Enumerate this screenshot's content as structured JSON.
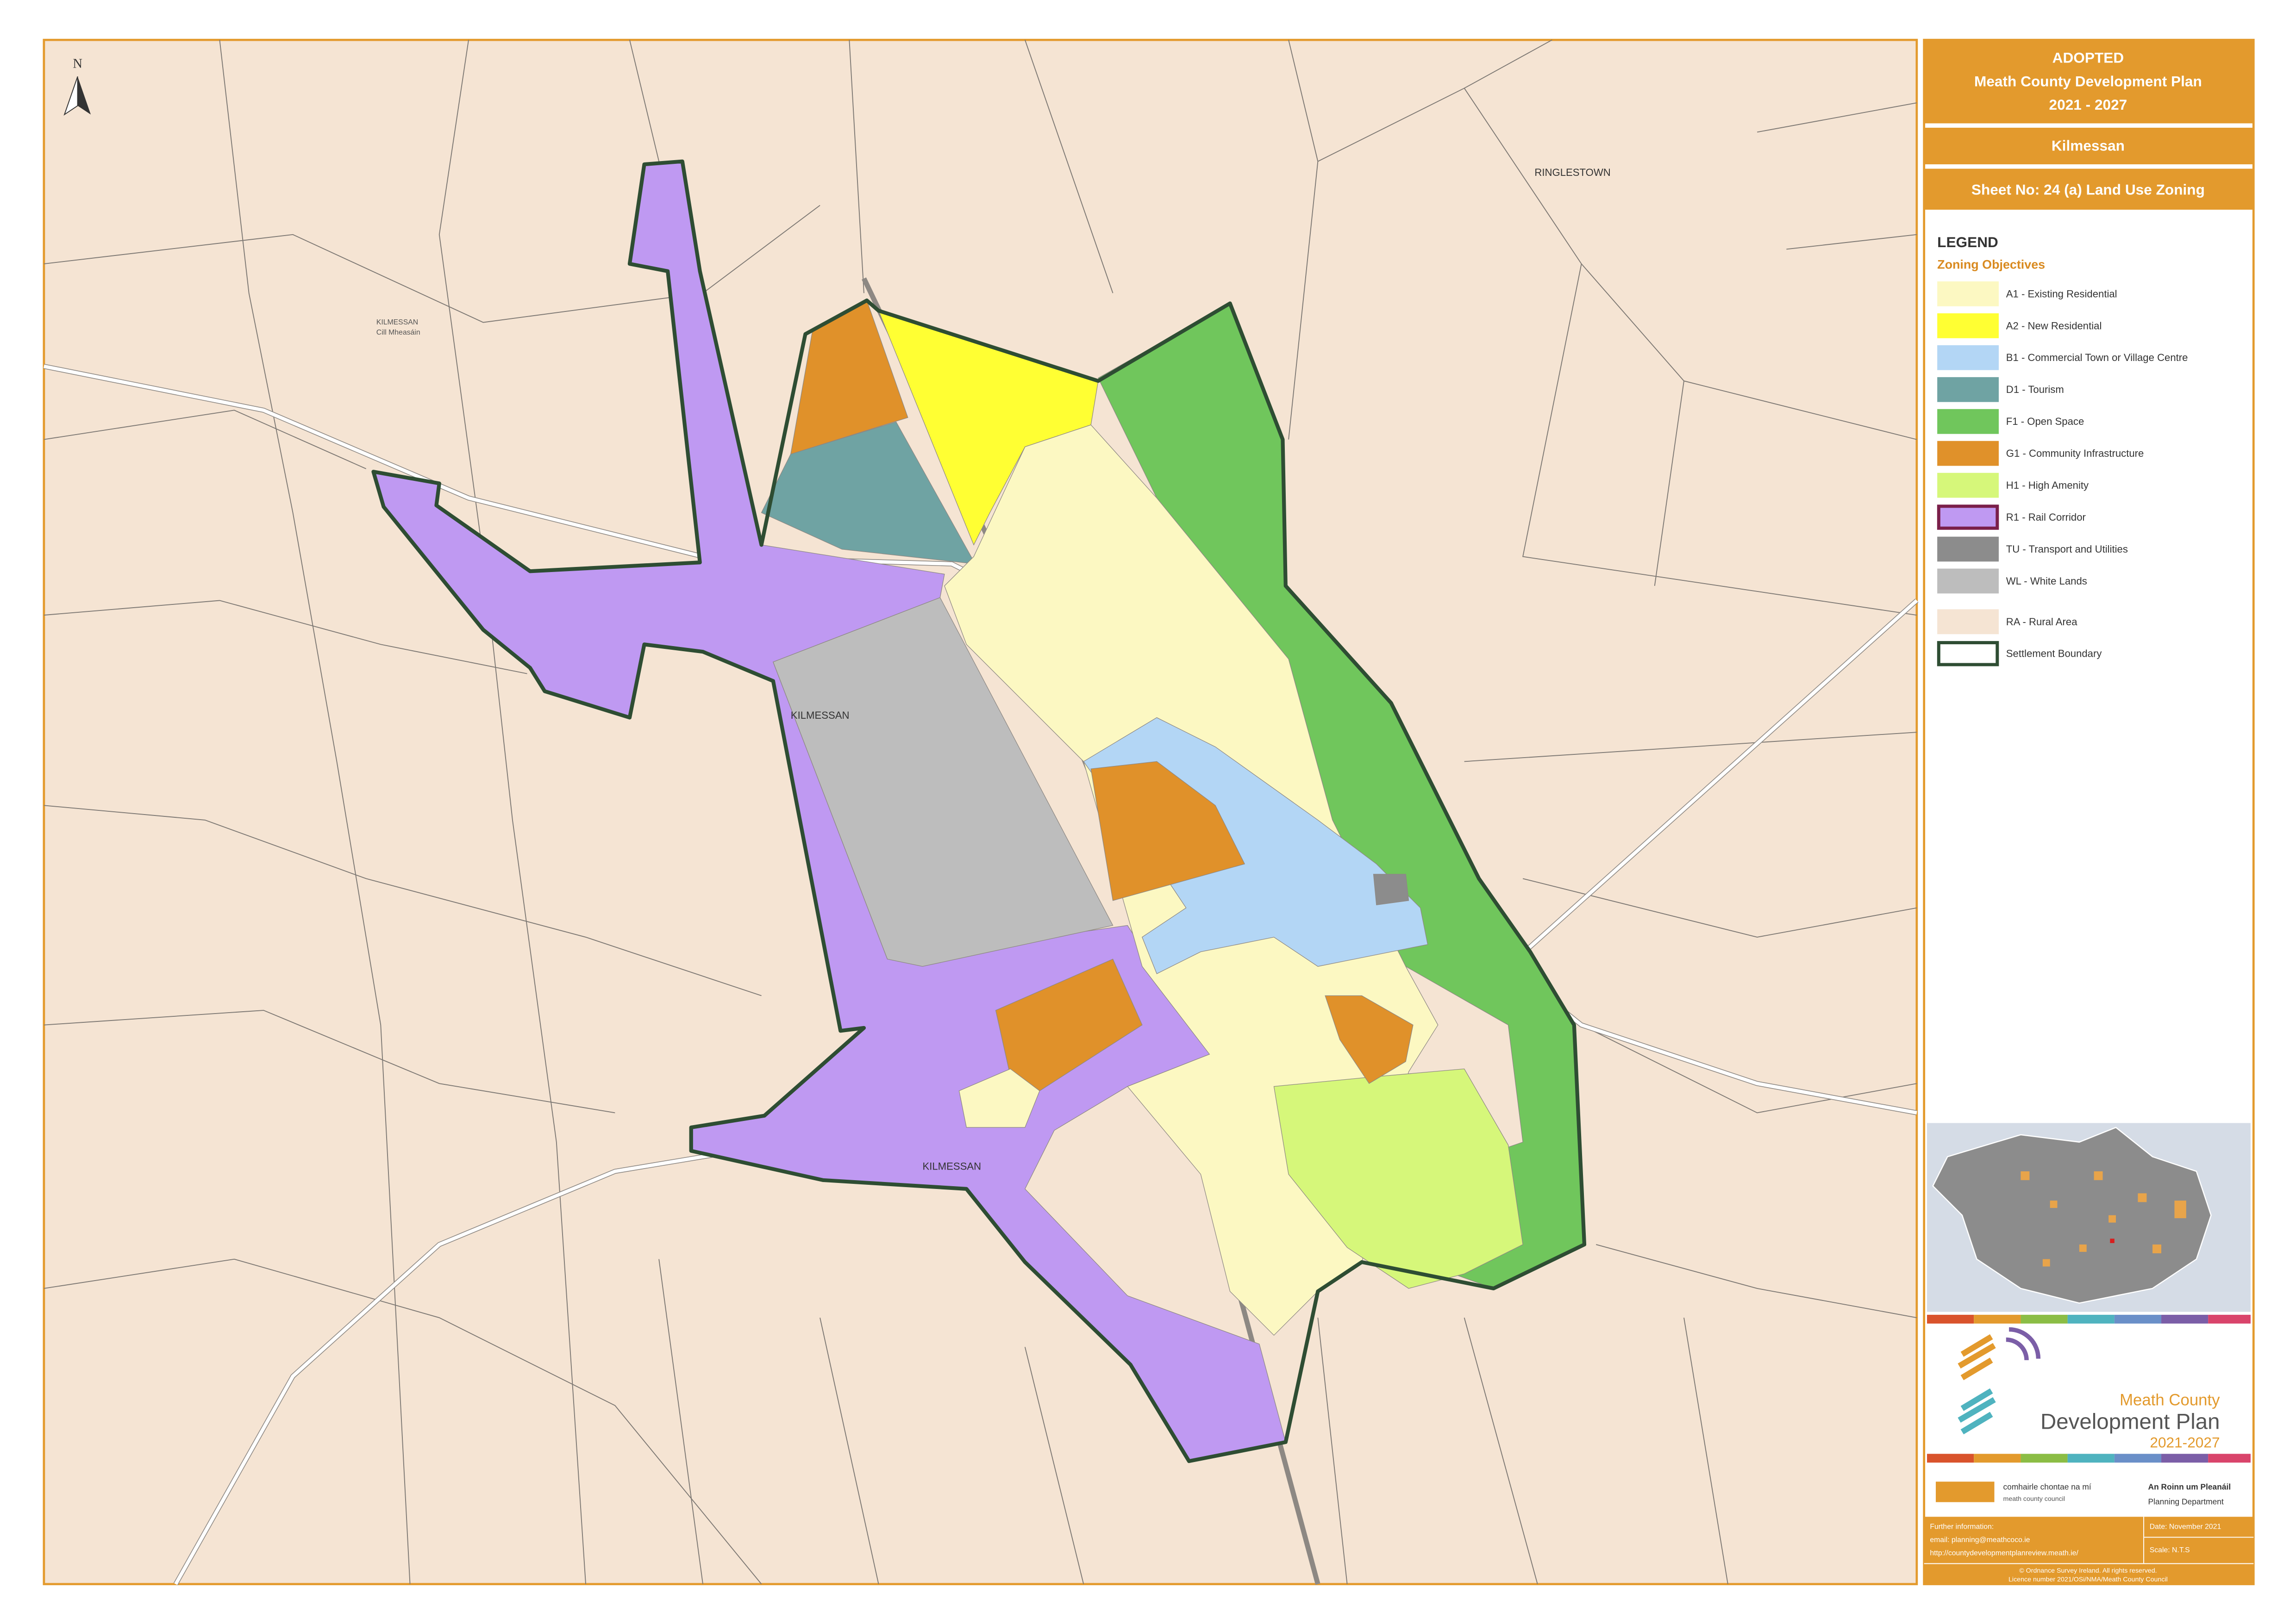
{
  "header": {
    "status": "ADOPTED",
    "plan": "Meath County Development Plan",
    "period": "2021 - 2027",
    "settlement": "Kilmessan",
    "sheet": "Sheet No: 24 (a) Land Use Zoning"
  },
  "legend": {
    "title": "LEGEND",
    "subtitle": "Zoning Objectives",
    "items": [
      {
        "label": "A1 - Existing Residential",
        "color": "#fcf8c2"
      },
      {
        "label": "A2 - New Residential",
        "color": "#ffff33"
      },
      {
        "label": "B1 - Commercial Town or Village Centre",
        "color": "#b3d6f5"
      },
      {
        "label": "D1 - Tourism",
        "color": "#6fa3a3"
      },
      {
        "label": "F1 - Open Space",
        "color": "#70c65c"
      },
      {
        "label": "G1 - Community Infrastructure",
        "color": "#e0912a"
      },
      {
        "label": "H1 - High Amenity",
        "color": "#d6f77a"
      },
      {
        "label": "R1 - Rail Corridor",
        "color": "#bf99f2",
        "outline": "#7a1f4a"
      },
      {
        "label": "TU - Transport and Utilities",
        "color": "#8c8c8c"
      },
      {
        "label": "WL - White Lands",
        "color": "#bdbdbd"
      },
      {
        "label": "RA - Rural Area",
        "color": "#f5e4d3"
      },
      {
        "label": "Settlement Boundary",
        "color": "#ffffff",
        "outline": "#2e4d33"
      }
    ]
  },
  "map_labels": {
    "north": "N",
    "townland_ne": "RINGLESTOWN",
    "town_centre": "KILMESSAN",
    "town_south": "KILMESSAN",
    "small_en": "KILMESSAN",
    "small_ga": "Cill Mheasáin"
  },
  "logo": {
    "line1": "Meath County",
    "line2": "Development Plan",
    "line3": "2021-2027",
    "council_ga": "comhairle chontae na mí",
    "council_en": "meath county council",
    "dept_ga": "An Roinn um Pleanáil",
    "dept_en": "Planning Department"
  },
  "footer": {
    "info": "Further information:",
    "email": "email: planning@meathcoco.ie",
    "web": "http://countydevelopmentplanreview.meath.ie/",
    "date": "Date: November 2021",
    "scale": "Scale: N.T.S",
    "copyright": "© Ordnance Survey Ireland. All rights reserved.",
    "licence": "Licence number 2021/OSi/NMA/Meath County Council"
  }
}
